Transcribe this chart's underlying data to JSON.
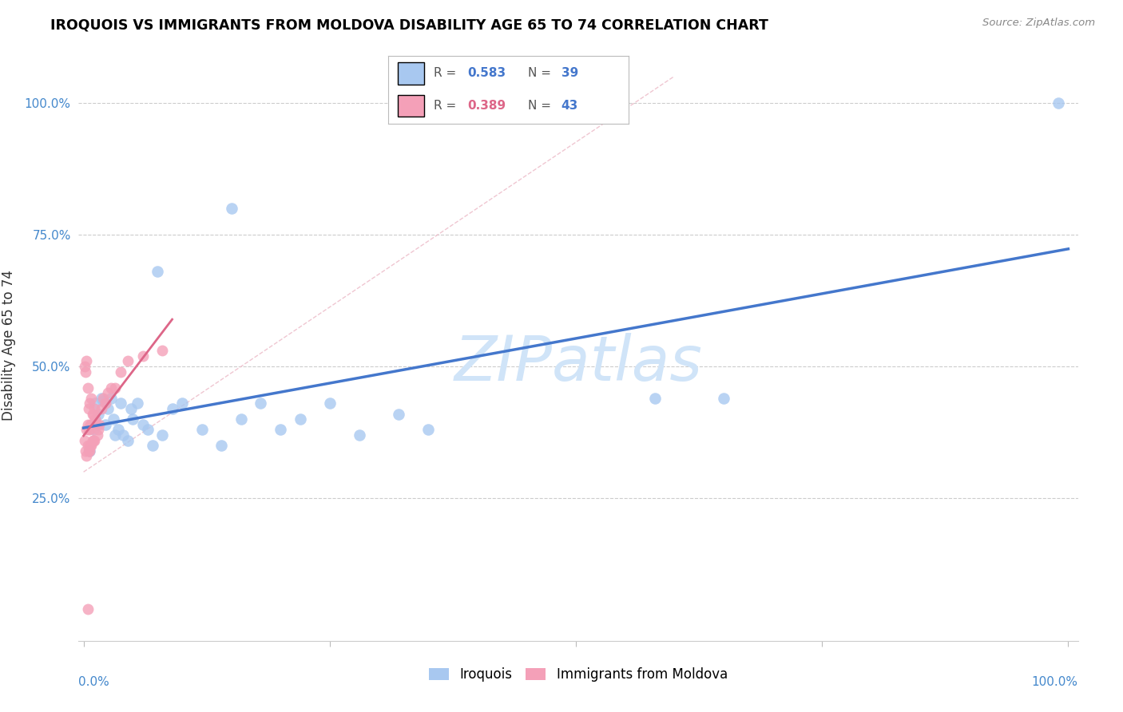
{
  "title": "IROQUOIS VS IMMIGRANTS FROM MOLDOVA DISABILITY AGE 65 TO 74 CORRELATION CHART",
  "source": "Source: ZipAtlas.com",
  "ylabel": "Disability Age 65 to 74",
  "ytick_positions": [
    0.0,
    0.25,
    0.5,
    0.75,
    1.0
  ],
  "ytick_labels": [
    "",
    "25.0%",
    "50.0%",
    "75.0%",
    "100.0%"
  ],
  "legend_R1": "0.583",
  "legend_N1": "39",
  "legend_R2": "0.389",
  "legend_N2": "43",
  "label1": "Iroquois",
  "label2": "Immigrants from Moldova",
  "color1": "#A8C8F0",
  "color2": "#F4A0B8",
  "trendline1_color": "#4477CC",
  "trendline2_color": "#DD6688",
  "diagonal_color": "#EEC0CC",
  "watermark": "ZIPatlas",
  "watermark_color": "#D0E4F8",
  "r_n_color_r": "#4477CC",
  "r_n_color_n": "#4477CC",
  "r2_color_r": "#DD6688",
  "iroquois_x": [
    0.006,
    0.01,
    0.012,
    0.015,
    0.018,
    0.02,
    0.022,
    0.025,
    0.028,
    0.03,
    0.032,
    0.035,
    0.038,
    0.04,
    0.045,
    0.048,
    0.05,
    0.055,
    0.06,
    0.065,
    0.07,
    0.08,
    0.09,
    0.1,
    0.12,
    0.14,
    0.16,
    0.18,
    0.2,
    0.22,
    0.25,
    0.28,
    0.32,
    0.35,
    0.58,
    0.65,
    0.15,
    0.075,
    0.99
  ],
  "iroquois_y": [
    0.34,
    0.38,
    0.43,
    0.41,
    0.44,
    0.435,
    0.39,
    0.42,
    0.44,
    0.4,
    0.37,
    0.38,
    0.43,
    0.37,
    0.36,
    0.42,
    0.4,
    0.43,
    0.39,
    0.38,
    0.35,
    0.37,
    0.42,
    0.43,
    0.38,
    0.35,
    0.4,
    0.43,
    0.38,
    0.4,
    0.43,
    0.37,
    0.41,
    0.38,
    0.44,
    0.44,
    0.8,
    0.68,
    1.0
  ],
  "moldova_x": [
    0.001,
    0.001,
    0.002,
    0.002,
    0.003,
    0.003,
    0.003,
    0.004,
    0.004,
    0.004,
    0.005,
    0.005,
    0.005,
    0.006,
    0.006,
    0.006,
    0.007,
    0.007,
    0.008,
    0.008,
    0.008,
    0.009,
    0.009,
    0.01,
    0.01,
    0.011,
    0.011,
    0.012,
    0.013,
    0.014,
    0.015,
    0.016,
    0.018,
    0.02,
    0.022,
    0.025,
    0.028,
    0.032,
    0.038,
    0.045,
    0.06,
    0.08,
    0.004
  ],
  "moldova_y": [
    0.36,
    0.5,
    0.34,
    0.49,
    0.33,
    0.38,
    0.51,
    0.35,
    0.39,
    0.46,
    0.34,
    0.38,
    0.42,
    0.34,
    0.38,
    0.43,
    0.35,
    0.39,
    0.35,
    0.39,
    0.44,
    0.36,
    0.41,
    0.36,
    0.41,
    0.36,
    0.42,
    0.4,
    0.39,
    0.37,
    0.38,
    0.39,
    0.42,
    0.44,
    0.43,
    0.45,
    0.46,
    0.46,
    0.49,
    0.51,
    0.52,
    0.53,
    0.04
  ]
}
